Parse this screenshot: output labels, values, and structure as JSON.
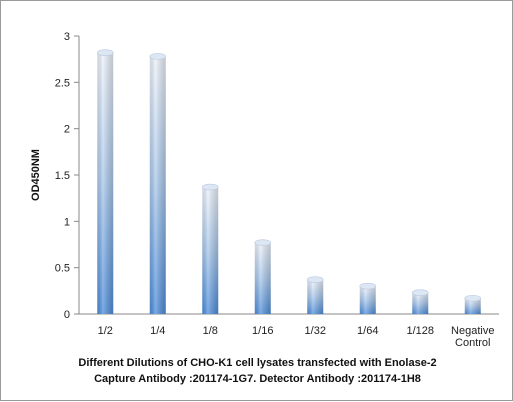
{
  "chart_data": {
    "type": "bar",
    "categories": [
      "1/2",
      "1/4",
      "1/8",
      "1/16",
      "1/32",
      "1/64",
      "1/128",
      "Negative Control"
    ],
    "category_lines": [
      [
        "1/2"
      ],
      [
        "1/4"
      ],
      [
        "1/8"
      ],
      [
        "1/16"
      ],
      [
        "1/32"
      ],
      [
        "1/64"
      ],
      [
        "1/128"
      ],
      [
        "Negative",
        "Control"
      ]
    ],
    "values": [
      2.82,
      2.78,
      1.37,
      0.77,
      0.37,
      0.3,
      0.23,
      0.17
    ],
    "ylabel": "OD450NM",
    "xlabel_lines": [
      "Different Dilutions of CHO-K1  cell lysates transfected with Enolase-2",
      "Capture Antibody :201174-1G7.   Detector Antibody :201174-1H8"
    ],
    "ylim": [
      0,
      3
    ],
    "yticks": [
      0,
      0.5,
      1,
      1.5,
      2,
      2.5,
      3
    ],
    "ytick_labels": [
      "0",
      "0.5",
      "1",
      "1.5",
      "2",
      "2.5",
      "3"
    ],
    "grid": false,
    "legend": "none",
    "bar_color": "#5b9bd5"
  }
}
